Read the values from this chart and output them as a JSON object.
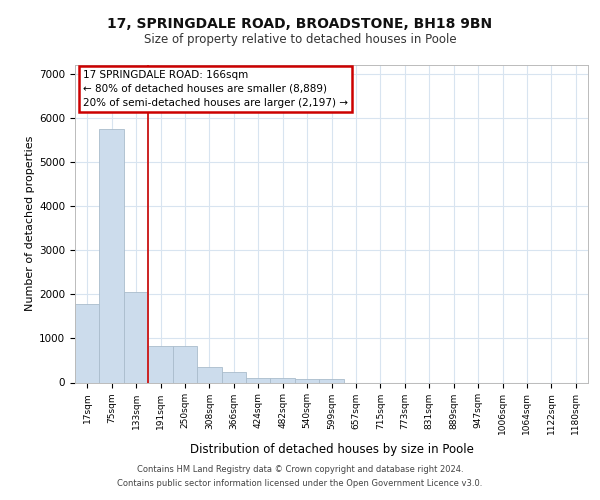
{
  "title1": "17, SPRINGDALE ROAD, BROADSTONE, BH18 9BN",
  "title2": "Size of property relative to detached houses in Poole",
  "xlabel": "Distribution of detached houses by size in Poole",
  "ylabel": "Number of detached properties",
  "bin_labels": [
    "17sqm",
    "75sqm",
    "133sqm",
    "191sqm",
    "250sqm",
    "308sqm",
    "366sqm",
    "424sqm",
    "482sqm",
    "540sqm",
    "599sqm",
    "657sqm",
    "715sqm",
    "773sqm",
    "831sqm",
    "889sqm",
    "947sqm",
    "1006sqm",
    "1064sqm",
    "1122sqm",
    "1180sqm"
  ],
  "bar_heights": [
    1780,
    5750,
    2050,
    830,
    830,
    360,
    230,
    105,
    95,
    85,
    75,
    0,
    0,
    0,
    0,
    0,
    0,
    0,
    0,
    0,
    0
  ],
  "bar_color": "#ccdcec",
  "bar_edge_color": "#aabccc",
  "grid_color": "#d8e4f0",
  "background_color": "#ffffff",
  "fig_background": "#ffffff",
  "red_line_x": 2.5,
  "annotation_text": "17 SPRINGDALE ROAD: 166sqm\n← 80% of detached houses are smaller (8,889)\n20% of semi-detached houses are larger (2,197) →",
  "annotation_box_color": "#ffffff",
  "annotation_box_edge_color": "#cc0000",
  "ylim": [
    0,
    7200
  ],
  "yticks": [
    0,
    1000,
    2000,
    3000,
    4000,
    5000,
    6000,
    7000
  ],
  "footer1": "Contains HM Land Registry data © Crown copyright and database right 2024.",
  "footer2": "Contains public sector information licensed under the Open Government Licence v3.0."
}
